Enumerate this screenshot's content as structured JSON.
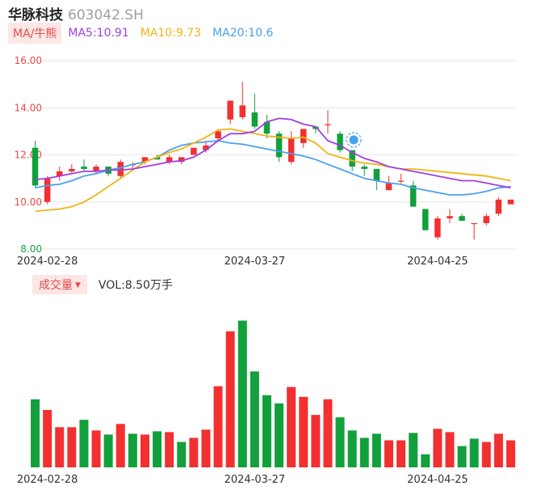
{
  "header": {
    "name": "华脉科技",
    "code": "603042.SH"
  },
  "ma_legend": {
    "tag": "MA/牛熊",
    "ma5": "MA5:10.91",
    "ma10": "MA10:9.73",
    "ma20": "MA20:10.6"
  },
  "volume_legend": {
    "tag": "成交量",
    "caret": "▼",
    "value": "VOL:8.50万手"
  },
  "colors": {
    "up": "#f23030",
    "down": "#12a03c",
    "ma5": "#a040e0",
    "ma10": "#f0b414",
    "ma20": "#4aa0f0",
    "grid": "#e6e6e6"
  },
  "badge_icon": "info-badge-icon",
  "chart_data": [
    {
      "type": "candlestick",
      "y_ticks": [
        "16.00",
        "14.00",
        "12.00",
        "10.00",
        "8.00"
      ],
      "ylim": [
        8.0,
        16.0
      ],
      "x_tick_labels": [
        "2024-02-28",
        "2024-03-27",
        "2024-04-25"
      ],
      "x_tick_index": [
        1,
        18,
        33
      ],
      "candles": [
        {
          "o": 12.3,
          "c": 10.7,
          "h": 12.6,
          "l": 10.6
        },
        {
          "o": 10.0,
          "c": 11.0,
          "h": 11.1,
          "l": 9.9
        },
        {
          "o": 11.1,
          "c": 11.3,
          "h": 11.5,
          "l": 10.9
        },
        {
          "o": 11.3,
          "c": 11.4,
          "h": 11.6,
          "l": 11.2
        },
        {
          "o": 11.5,
          "c": 11.4,
          "h": 11.8,
          "l": 11.3
        },
        {
          "o": 11.3,
          "c": 11.5,
          "h": 11.6,
          "l": 11.2
        },
        {
          "o": 11.5,
          "c": 11.2,
          "h": 11.5,
          "l": 11.1
        },
        {
          "o": 11.1,
          "c": 11.7,
          "h": 11.8,
          "l": 11.0
        },
        {
          "o": 11.6,
          "c": 11.6,
          "h": 11.7,
          "l": 11.4
        },
        {
          "o": 11.7,
          "c": 11.9,
          "h": 11.9,
          "l": 11.6
        },
        {
          "o": 11.9,
          "c": 11.8,
          "h": 12.0,
          "l": 11.8
        },
        {
          "o": 11.7,
          "c": 11.9,
          "h": 12.0,
          "l": 11.6
        },
        {
          "o": 11.7,
          "c": 11.9,
          "h": 11.9,
          "l": 11.6
        },
        {
          "o": 12.0,
          "c": 12.3,
          "h": 12.3,
          "l": 12.0
        },
        {
          "o": 12.2,
          "c": 12.4,
          "h": 12.6,
          "l": 12.1
        },
        {
          "o": 12.7,
          "c": 13.0,
          "h": 13.1,
          "l": 12.6
        },
        {
          "o": 13.5,
          "c": 14.3,
          "h": 14.3,
          "l": 13.3
        },
        {
          "o": 13.6,
          "c": 14.1,
          "h": 15.1,
          "l": 13.5
        },
        {
          "o": 13.8,
          "c": 13.2,
          "h": 14.6,
          "l": 13.1
        },
        {
          "o": 13.4,
          "c": 12.9,
          "h": 13.7,
          "l": 12.7
        },
        {
          "o": 12.9,
          "c": 11.9,
          "h": 13.0,
          "l": 11.7
        },
        {
          "o": 11.7,
          "c": 12.7,
          "h": 13.0,
          "l": 11.6
        },
        {
          "o": 12.5,
          "c": 13.1,
          "h": 13.1,
          "l": 12.3
        },
        {
          "o": 13.2,
          "c": 13.1,
          "h": 13.2,
          "l": 12.9
        },
        {
          "o": 13.3,
          "c": 13.3,
          "h": 13.9,
          "l": 12.9
        },
        {
          "o": 12.9,
          "c": 12.2,
          "h": 13.0,
          "l": 12.1
        },
        {
          "o": 12.2,
          "c": 11.5,
          "h": 12.2,
          "l": 11.3
        },
        {
          "o": 11.5,
          "c": 11.4,
          "h": 11.6,
          "l": 11.1
        },
        {
          "o": 11.4,
          "c": 10.9,
          "h": 11.4,
          "l": 10.5
        },
        {
          "o": 10.5,
          "c": 10.8,
          "h": 11.1,
          "l": 10.5
        },
        {
          "o": 10.9,
          "c": 10.9,
          "h": 11.2,
          "l": 10.8
        },
        {
          "o": 10.7,
          "c": 9.8,
          "h": 10.9,
          "l": 9.8
        },
        {
          "o": 9.7,
          "c": 8.8,
          "h": 9.7,
          "l": 8.8
        },
        {
          "o": 8.5,
          "c": 9.3,
          "h": 9.4,
          "l": 8.4
        },
        {
          "o": 9.3,
          "c": 9.4,
          "h": 9.7,
          "l": 9.1
        },
        {
          "o": 9.4,
          "c": 9.2,
          "h": 9.5,
          "l": 9.2
        },
        {
          "o": 9.1,
          "c": 9.1,
          "h": 9.1,
          "l": 8.4
        },
        {
          "o": 9.1,
          "c": 9.4,
          "h": 9.5,
          "l": 9.0
        },
        {
          "o": 9.5,
          "c": 10.1,
          "h": 10.2,
          "l": 9.4
        },
        {
          "o": 9.9,
          "c": 10.1,
          "h": 10.1,
          "l": 9.9
        }
      ],
      "ma5_values": [
        10.95,
        11.0,
        11.1,
        11.2,
        11.3,
        11.3,
        11.35,
        11.35,
        11.4,
        11.5,
        11.6,
        11.7,
        11.75,
        11.9,
        12.2,
        12.6,
        12.9,
        12.9,
        13.0,
        13.4,
        13.55,
        13.5,
        13.3,
        13.2,
        12.6,
        12.4,
        12.1,
        11.85,
        11.7,
        11.5,
        11.4,
        11.3,
        11.2,
        11.1,
        11.0,
        10.9,
        10.9,
        10.8,
        10.7,
        10.6
      ],
      "ma10_values": [
        9.6,
        9.65,
        9.7,
        9.8,
        10.0,
        10.3,
        10.65,
        11.0,
        11.35,
        11.7,
        11.9,
        12.1,
        12.25,
        12.5,
        12.75,
        13.05,
        13.1,
        13.0,
        12.9,
        12.8,
        12.75,
        12.7,
        12.75,
        12.5,
        12.05,
        11.9,
        11.75,
        11.65,
        11.6,
        11.5,
        11.4,
        11.4,
        11.35,
        11.3,
        11.25,
        11.2,
        11.15,
        11.1,
        11.0,
        10.9
      ],
      "ma20_values": [
        10.6,
        10.7,
        10.75,
        10.9,
        11.1,
        11.2,
        11.35,
        11.45,
        11.6,
        11.7,
        11.9,
        12.2,
        12.4,
        12.5,
        12.55,
        12.6,
        12.5,
        12.45,
        12.35,
        12.25,
        12.15,
        12.05,
        11.95,
        11.8,
        11.6,
        11.4,
        11.2,
        11.0,
        10.9,
        10.8,
        10.75,
        10.6,
        10.5,
        10.4,
        10.3,
        10.3,
        10.35,
        10.45,
        10.6,
        10.65
      ]
    },
    {
      "type": "bar",
      "series_name": "VOL",
      "x_tick_labels": [
        "2024-02-28",
        "2024-03-27",
        "2024-04-25"
      ],
      "x_tick_index": [
        1,
        18,
        33
      ],
      "ylim": [
        0,
        21.5
      ],
      "values": [
        8.3,
        7.0,
        4.9,
        4.9,
        5.8,
        4.5,
        4.0,
        5.3,
        4.1,
        4.0,
        4.4,
        4.3,
        3.1,
        3.6,
        4.6,
        9.9,
        16.6,
        17.9,
        11.7,
        8.8,
        7.8,
        9.8,
        8.6,
        6.4,
        8.3,
        6.1,
        4.5,
        3.6,
        4.1,
        3.3,
        3.3,
        4.2,
        1.6,
        4.7,
        4.3,
        2.6,
        3.5,
        3.1,
        4.1,
        3.3
      ],
      "up": [
        false,
        true,
        true,
        true,
        false,
        true,
        false,
        true,
        false,
        true,
        false,
        true,
        false,
        true,
        true,
        true,
        true,
        false,
        false,
        false,
        false,
        true,
        true,
        true,
        true,
        false,
        false,
        false,
        false,
        true,
        true,
        false,
        false,
        true,
        true,
        false,
        false,
        true,
        true,
        true
      ]
    }
  ]
}
